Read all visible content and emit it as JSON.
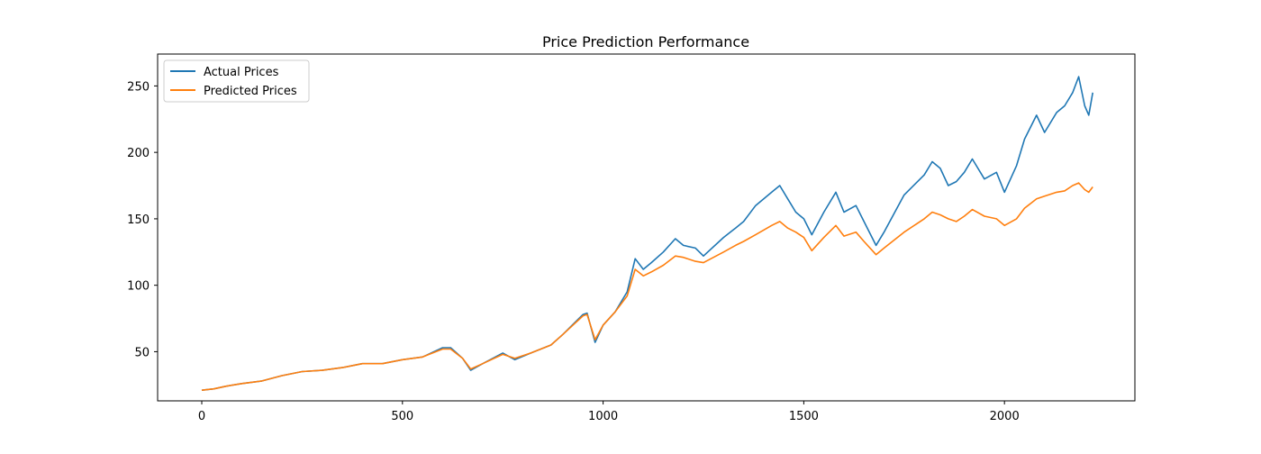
{
  "chart_data": {
    "type": "line",
    "title": "Price Prediction Performance",
    "xlabel": "",
    "ylabel": "",
    "xlim": [
      -110,
      2325
    ],
    "ylim": [
      13,
      274
    ],
    "x_ticks": [
      0,
      500,
      1000,
      1500,
      2000
    ],
    "y_ticks": [
      50,
      100,
      150,
      200,
      250
    ],
    "grid": false,
    "legend": "top-left",
    "series": [
      {
        "name": "Actual Prices",
        "color": "#1f77b4",
        "points": [
          [
            0,
            21
          ],
          [
            30,
            22
          ],
          [
            60,
            24
          ],
          [
            100,
            26
          ],
          [
            150,
            28
          ],
          [
            200,
            32
          ],
          [
            250,
            35
          ],
          [
            300,
            36
          ],
          [
            350,
            38
          ],
          [
            400,
            41
          ],
          [
            450,
            41
          ],
          [
            500,
            44
          ],
          [
            550,
            46
          ],
          [
            600,
            53
          ],
          [
            620,
            53
          ],
          [
            650,
            45
          ],
          [
            670,
            36
          ],
          [
            700,
            41
          ],
          [
            750,
            49
          ],
          [
            780,
            44
          ],
          [
            820,
            49
          ],
          [
            870,
            55
          ],
          [
            900,
            63
          ],
          [
            950,
            78
          ],
          [
            960,
            79
          ],
          [
            980,
            57
          ],
          [
            1000,
            70
          ],
          [
            1030,
            80
          ],
          [
            1060,
            95
          ],
          [
            1080,
            120
          ],
          [
            1100,
            112
          ],
          [
            1120,
            117
          ],
          [
            1150,
            125
          ],
          [
            1180,
            135
          ],
          [
            1200,
            130
          ],
          [
            1230,
            128
          ],
          [
            1250,
            122
          ],
          [
            1300,
            136
          ],
          [
            1330,
            143
          ],
          [
            1350,
            148
          ],
          [
            1380,
            160
          ],
          [
            1420,
            170
          ],
          [
            1440,
            175
          ],
          [
            1460,
            165
          ],
          [
            1480,
            155
          ],
          [
            1500,
            150
          ],
          [
            1520,
            138
          ],
          [
            1550,
            155
          ],
          [
            1580,
            170
          ],
          [
            1600,
            155
          ],
          [
            1630,
            160
          ],
          [
            1650,
            148
          ],
          [
            1680,
            130
          ],
          [
            1700,
            140
          ],
          [
            1750,
            168
          ],
          [
            1800,
            183
          ],
          [
            1820,
            193
          ],
          [
            1840,
            188
          ],
          [
            1860,
            175
          ],
          [
            1880,
            178
          ],
          [
            1900,
            185
          ],
          [
            1920,
            195
          ],
          [
            1950,
            180
          ],
          [
            1980,
            185
          ],
          [
            2000,
            170
          ],
          [
            2030,
            190
          ],
          [
            2050,
            210
          ],
          [
            2080,
            228
          ],
          [
            2100,
            215
          ],
          [
            2130,
            230
          ],
          [
            2150,
            235
          ],
          [
            2170,
            245
          ],
          [
            2185,
            257
          ],
          [
            2200,
            235
          ],
          [
            2210,
            228
          ],
          [
            2220,
            245
          ]
        ]
      },
      {
        "name": "Predicted Prices",
        "color": "#ff7f0e",
        "points": [
          [
            0,
            21
          ],
          [
            30,
            22
          ],
          [
            60,
            24
          ],
          [
            100,
            26
          ],
          [
            150,
            28
          ],
          [
            200,
            32
          ],
          [
            250,
            35
          ],
          [
            300,
            36
          ],
          [
            350,
            38
          ],
          [
            400,
            41
          ],
          [
            450,
            41
          ],
          [
            500,
            44
          ],
          [
            550,
            46
          ],
          [
            600,
            52
          ],
          [
            620,
            52
          ],
          [
            650,
            45
          ],
          [
            670,
            37
          ],
          [
            700,
            41
          ],
          [
            750,
            48
          ],
          [
            780,
            45
          ],
          [
            820,
            49
          ],
          [
            870,
            55
          ],
          [
            900,
            63
          ],
          [
            950,
            77
          ],
          [
            960,
            78
          ],
          [
            980,
            59
          ],
          [
            1000,
            70
          ],
          [
            1030,
            80
          ],
          [
            1060,
            92
          ],
          [
            1080,
            112
          ],
          [
            1100,
            107
          ],
          [
            1120,
            110
          ],
          [
            1150,
            115
          ],
          [
            1180,
            122
          ],
          [
            1200,
            121
          ],
          [
            1230,
            118
          ],
          [
            1250,
            117
          ],
          [
            1300,
            125
          ],
          [
            1330,
            130
          ],
          [
            1350,
            133
          ],
          [
            1380,
            138
          ],
          [
            1420,
            145
          ],
          [
            1440,
            148
          ],
          [
            1460,
            143
          ],
          [
            1480,
            140
          ],
          [
            1500,
            136
          ],
          [
            1520,
            126
          ],
          [
            1550,
            136
          ],
          [
            1580,
            145
          ],
          [
            1600,
            137
          ],
          [
            1630,
            140
          ],
          [
            1650,
            133
          ],
          [
            1680,
            123
          ],
          [
            1700,
            128
          ],
          [
            1750,
            140
          ],
          [
            1800,
            150
          ],
          [
            1820,
            155
          ],
          [
            1840,
            153
          ],
          [
            1860,
            150
          ],
          [
            1880,
            148
          ],
          [
            1900,
            152
          ],
          [
            1920,
            157
          ],
          [
            1950,
            152
          ],
          [
            1980,
            150
          ],
          [
            2000,
            145
          ],
          [
            2030,
            150
          ],
          [
            2050,
            158
          ],
          [
            2080,
            165
          ],
          [
            2100,
            167
          ],
          [
            2130,
            170
          ],
          [
            2150,
            171
          ],
          [
            2170,
            175
          ],
          [
            2185,
            177
          ],
          [
            2200,
            172
          ],
          [
            2210,
            170
          ],
          [
            2220,
            174
          ]
        ]
      }
    ]
  }
}
